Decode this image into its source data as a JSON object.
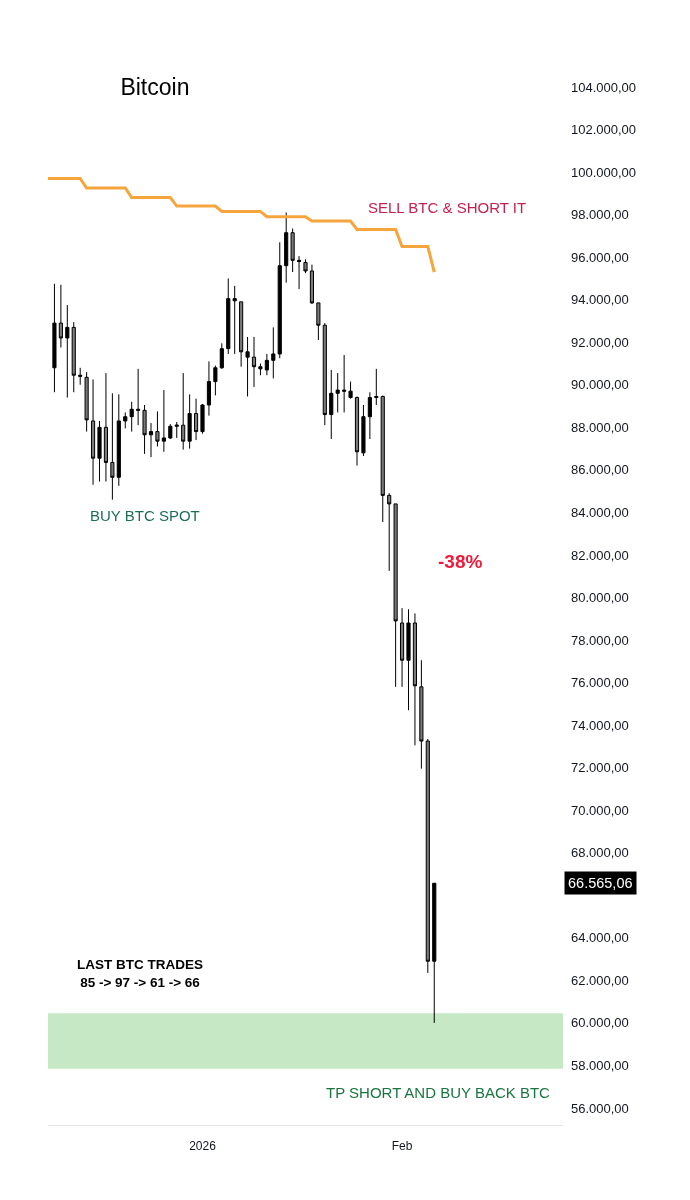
{
  "chart_data": {
    "type": "candlestick",
    "title": "Bitcoin",
    "x": [
      "2025-12-09",
      "2025-12-10",
      "2025-12-11",
      "2025-12-12",
      "2025-12-13",
      "2025-12-14",
      "2025-12-15",
      "2025-12-16",
      "2025-12-17",
      "2025-12-18",
      "2025-12-19",
      "2025-12-20",
      "2025-12-21",
      "2025-12-22",
      "2025-12-23",
      "2025-12-24",
      "2025-12-25",
      "2025-12-26",
      "2025-12-27",
      "2025-12-28",
      "2025-12-29",
      "2025-12-30",
      "2025-12-31",
      "2026-01-01",
      "2026-01-02",
      "2026-01-03",
      "2026-01-04",
      "2026-01-05",
      "2026-01-06",
      "2026-01-07",
      "2026-01-08",
      "2026-01-09",
      "2026-01-10",
      "2026-01-11",
      "2026-01-12",
      "2026-01-13",
      "2026-01-14",
      "2026-01-15",
      "2026-01-16",
      "2026-01-17",
      "2026-01-18",
      "2026-01-19",
      "2026-01-20",
      "2026-01-21",
      "2026-01-22",
      "2026-01-23",
      "2026-01-24",
      "2026-01-25",
      "2026-01-26",
      "2026-01-27",
      "2026-01-28",
      "2026-01-29",
      "2026-01-30",
      "2026-01-31",
      "2026-02-01",
      "2026-02-02",
      "2026-02-03",
      "2026-02-04",
      "2026-02-05",
      "2026-02-06"
    ],
    "ohlc": [
      [
        90800,
        94750,
        89650,
        92900
      ],
      [
        92900,
        94700,
        91750,
        92200
      ],
      [
        92200,
        93750,
        89400,
        92700
      ],
      [
        92700,
        92950,
        89650,
        90450
      ],
      [
        90450,
        90800,
        90000,
        90400
      ],
      [
        90350,
        90600,
        87800,
        88350
      ],
      [
        88300,
        90250,
        85300,
        86550
      ],
      [
        86550,
        88300,
        85450,
        88000
      ],
      [
        88000,
        90550,
        85450,
        86350
      ],
      [
        86350,
        89600,
        84600,
        85650
      ],
      [
        85650,
        89550,
        85250,
        88300
      ],
      [
        88300,
        88700,
        87950,
        88500
      ],
      [
        88500,
        89200,
        87800,
        88850
      ],
      [
        88850,
        90750,
        88100,
        88800
      ],
      [
        88800,
        89050,
        86750,
        87650
      ],
      [
        87650,
        88200,
        86600,
        87800
      ],
      [
        87800,
        88750,
        87100,
        87350
      ],
      [
        87350,
        89750,
        86850,
        87500
      ],
      [
        87500,
        88150,
        87450,
        88050
      ],
      [
        88050,
        88250,
        87500,
        88100
      ],
      [
        88100,
        90550,
        86950,
        87350
      ],
      [
        87350,
        89550,
        87000,
        88650
      ],
      [
        88650,
        89350,
        87400,
        87800
      ],
      [
        87800,
        89100,
        87700,
        89050
      ],
      [
        89050,
        91100,
        88550,
        90150
      ],
      [
        90150,
        90900,
        89500,
        90800
      ],
      [
        90800,
        91950,
        90750,
        91700
      ],
      [
        91700,
        95000,
        91450,
        94050
      ],
      [
        94050,
        94650,
        91450,
        93950
      ],
      [
        93900,
        93900,
        90850,
        91550
      ],
      [
        91550,
        92250,
        89450,
        91300
      ],
      [
        91300,
        92250,
        89900,
        90850
      ],
      [
        90850,
        91000,
        90450,
        90750
      ],
      [
        90700,
        91450,
        90450,
        91150
      ],
      [
        91150,
        92700,
        90300,
        91450
      ],
      [
        91450,
        96700,
        91250,
        95600
      ],
      [
        95600,
        98100,
        94800,
        97150
      ],
      [
        97150,
        97350,
        95300,
        95850
      ],
      [
        95850,
        96050,
        94500,
        95800
      ],
      [
        95750,
        95900,
        95250,
        95350
      ],
      [
        95350,
        95650,
        93800,
        93850
      ],
      [
        93850,
        93850,
        92100,
        92800
      ],
      [
        92800,
        92900,
        88100,
        88600
      ],
      [
        88600,
        90700,
        87450,
        89600
      ],
      [
        89600,
        90550,
        88700,
        89750
      ],
      [
        89750,
        91400,
        88700,
        89700
      ],
      [
        89700,
        90150,
        89350,
        89400
      ],
      [
        89400,
        89450,
        86200,
        86850
      ],
      [
        86800,
        89050,
        86650,
        88500
      ],
      [
        88500,
        89650,
        87450,
        89400
      ],
      [
        89400,
        90750,
        89050,
        89450
      ],
      [
        89450,
        89500,
        83550,
        84800
      ],
      [
        84800,
        84900,
        81250,
        84400
      ],
      [
        84400,
        84400,
        75800,
        78900
      ],
      [
        78800,
        79500,
        75800,
        77050
      ],
      [
        77050,
        79450,
        74700,
        78800
      ],
      [
        78800,
        79250,
        73050,
        75850
      ],
      [
        75800,
        77050,
        71950,
        73250
      ],
      [
        73250,
        73350,
        62350,
        62900
      ],
      [
        62900,
        66565.06,
        60000,
        66565.06
      ]
    ],
    "colors": [
      "#000000",
      "#7a7a7a",
      "#000000",
      "#7a7a7a",
      "#000000",
      "#7a7a7a",
      "#7a7a7a",
      "#000000",
      "#7a7a7a",
      "#7a7a7a",
      "#000000",
      "#000000",
      "#000000",
      "#000000",
      "#7a7a7a",
      "#000000",
      "#7a7a7a",
      "#000000",
      "#000000",
      "#000000",
      "#7a7a7a",
      "#000000",
      "#7a7a7a",
      "#000000",
      "#000000",
      "#000000",
      "#000000",
      "#000000",
      "#000000",
      "#7a7a7a",
      "#000000",
      "#7a7a7a",
      "#000000",
      "#000000",
      "#000000",
      "#000000",
      "#000000",
      "#7a7a7a",
      "#000000",
      "#7a7a7a",
      "#7a7a7a",
      "#7a7a7a",
      "#7a7a7a",
      "#000000",
      "#000000",
      "#000000",
      "#000000",
      "#7a7a7a",
      "#000000",
      "#000000",
      "#000000",
      "#7a7a7a",
      "#7a7a7a",
      "#7a7a7a",
      "#7a7a7a",
      "#000000",
      "#7a7a7a",
      "#7a7a7a",
      "#7a7a7a",
      "#000000"
    ],
    "series": [
      {
        "type": "line",
        "color": "#f6a53c",
        "x": [
          "2025-12-08",
          "2025-12-13",
          "2025-12-14",
          "2025-12-20",
          "2025-12-21",
          "2025-12-27",
          "2025-12-28",
          "2026-01-03",
          "2026-01-04",
          "2026-01-10",
          "2026-01-11",
          "2026-01-17",
          "2026-01-18",
          "2026-01-24",
          "2026-01-25",
          "2026-01-31",
          "2026-02-01",
          "2026-02-05",
          "2026-02-06"
        ],
        "values": [
          99700,
          99700,
          99250,
          99250,
          98800,
          98800,
          98400,
          98400,
          98150,
          98150,
          97900,
          97900,
          97700,
          97700,
          97300,
          97300,
          96500,
          96500,
          95300
        ]
      }
    ],
    "xlim": [
      "2025-12-08",
      "2026-02-26"
    ],
    "xticks": [
      {
        "value": "2026-01-01",
        "label": "2026"
      },
      {
        "value": "2026-02-01",
        "label": "Feb"
      }
    ],
    "ylim": [
      55200,
      104000
    ],
    "yticks": [
      {
        "value": 56000,
        "label": "56.000,00"
      },
      {
        "value": 58000,
        "label": "58.000,00"
      },
      {
        "value": 60000,
        "label": "60.000,00"
      },
      {
        "value": 62000,
        "label": "62.000,00"
      },
      {
        "value": 64000,
        "label": "64.000,00"
      },
      {
        "value": 68000,
        "label": "68.000,00"
      },
      {
        "value": 70000,
        "label": "70.000,00"
      },
      {
        "value": 72000,
        "label": "72.000,00"
      },
      {
        "value": 74000,
        "label": "74.000,00"
      },
      {
        "value": 76000,
        "label": "76.000,00"
      },
      {
        "value": 78000,
        "label": "78.000,00"
      },
      {
        "value": 80000,
        "label": "80.000,00"
      },
      {
        "value": 82000,
        "label": "82.000,00"
      },
      {
        "value": 84000,
        "label": "84.000,00"
      },
      {
        "value": 86000,
        "label": "86.000,00"
      },
      {
        "value": 88000,
        "label": "88.000,00"
      },
      {
        "value": 90000,
        "label": "90.000,00"
      },
      {
        "value": 92000,
        "label": "92.000,00"
      },
      {
        "value": 94000,
        "label": "94.000,00"
      },
      {
        "value": 96000,
        "label": "96.000,00"
      },
      {
        "value": 98000,
        "label": "98.000,00"
      },
      {
        "value": 100000,
        "label": "100.000,00"
      },
      {
        "value": 102000,
        "label": "102.000,00"
      },
      {
        "value": 104000,
        "label": "104.000,00"
      }
    ],
    "bands": [
      {
        "axis": "y",
        "from": 57850,
        "to": 60450,
        "label": "TP SHORT AND BUY BACK BTC",
        "color": "#c6e8c4"
      }
    ],
    "annotations": [
      "SELL BTC & SHORT IT",
      "BUY BTC SPOT",
      "-38%",
      "LAST BTC TRADES\n85 -> 97 -> 61 -> 66",
      "66.565,06"
    ],
    "grid": false
  }
}
